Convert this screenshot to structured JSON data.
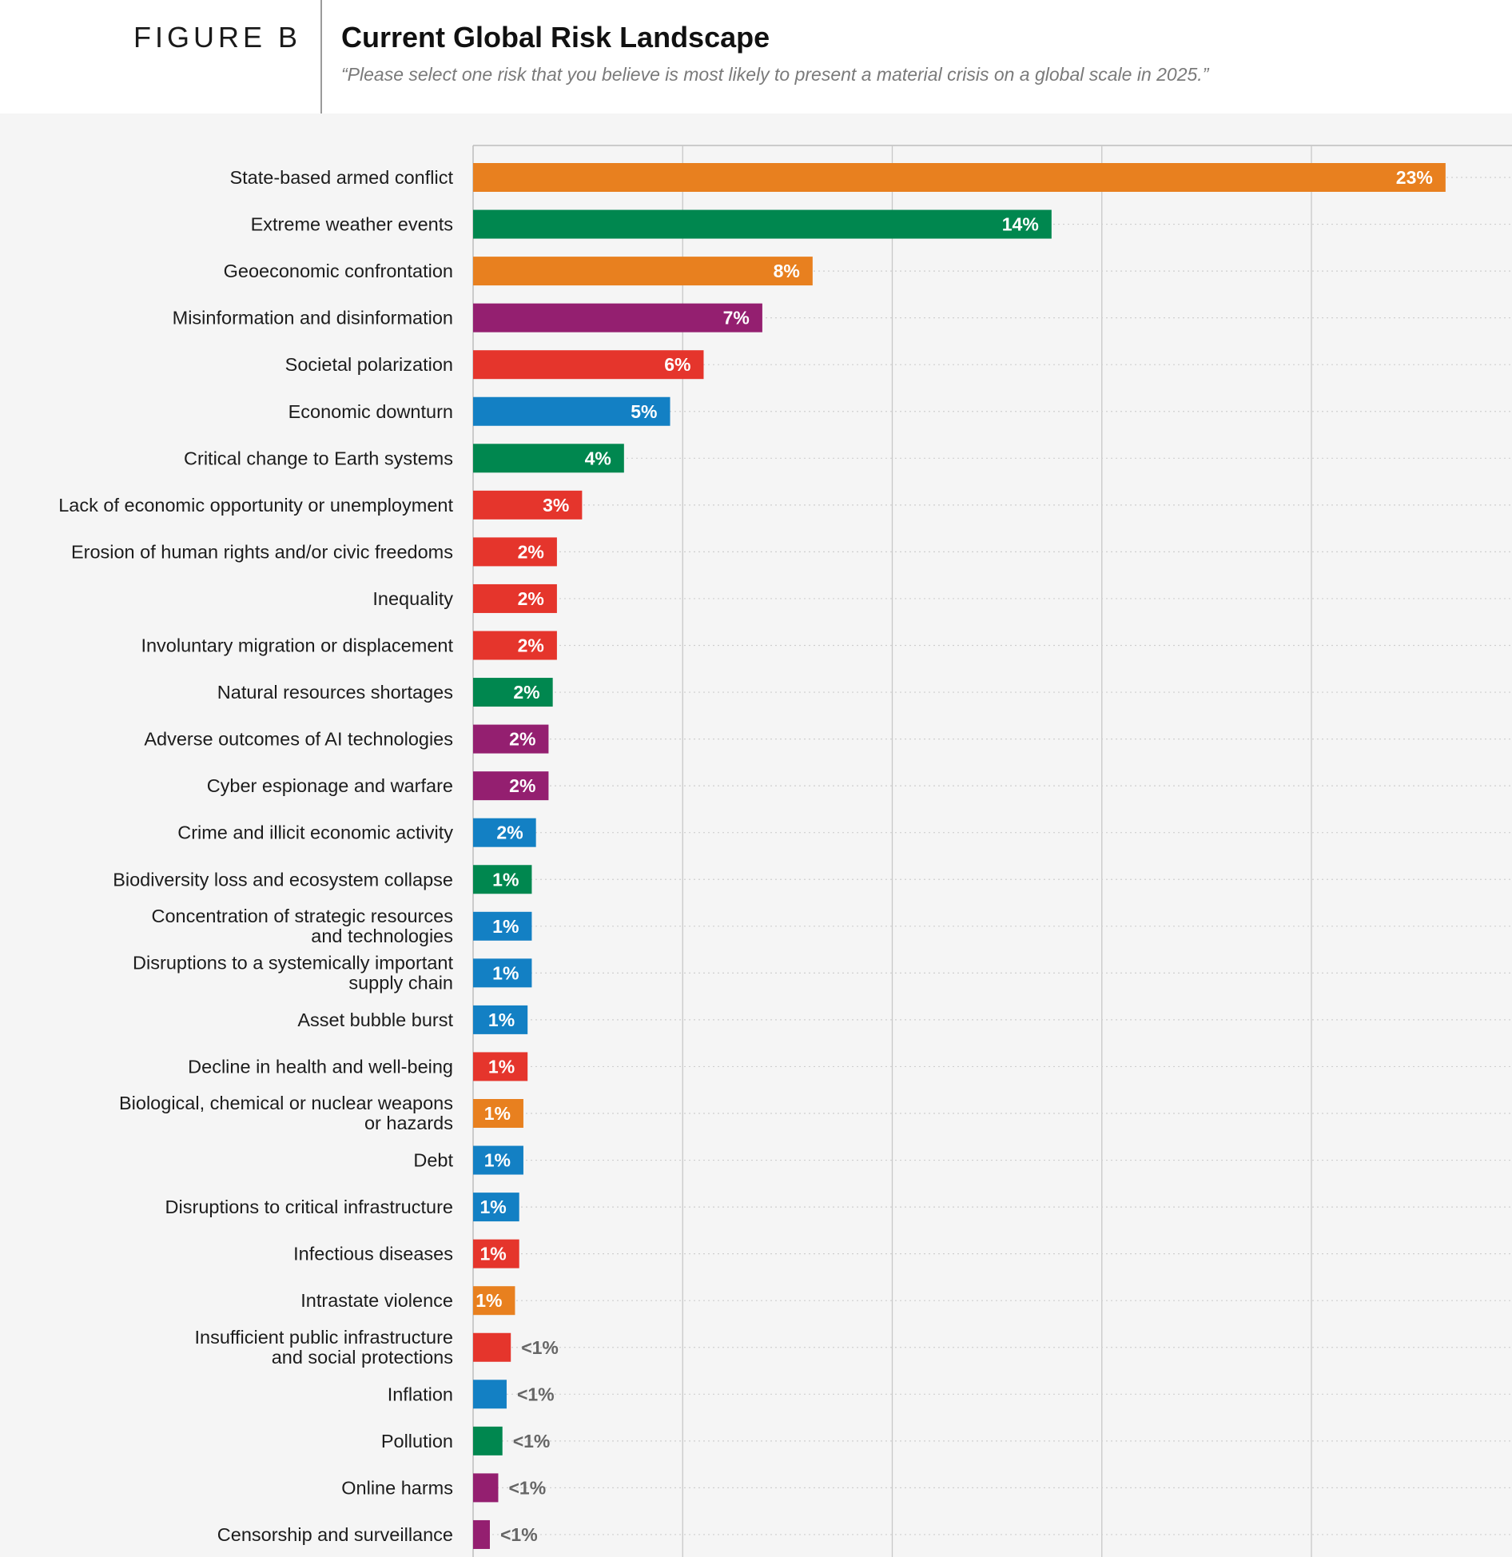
{
  "figure_label": "FIGURE B",
  "title": "Current Global Risk Landscape",
  "subtitle": "“Please select one risk that you believe is most likely to present a material crisis on a global scale in 2025.”",
  "colors": {
    "geopolitical": "#e8801f",
    "environmental": "#00874f",
    "technological": "#941f70",
    "societal": "#e5352c",
    "economic": "#1380c4"
  },
  "chart_data": {
    "type": "bar",
    "orientation": "horizontal",
    "title": "Current Global Risk Landscape",
    "xlim": [
      0,
      25
    ],
    "grid": true,
    "categories": [
      [
        "State-based armed conflict"
      ],
      [
        "Extreme weather events"
      ],
      [
        "Geoeconomic confrontation"
      ],
      [
        "Misinformation and disinformation"
      ],
      [
        "Societal polarization"
      ],
      [
        "Economic downturn"
      ],
      [
        "Critical change to Earth systems"
      ],
      [
        "Lack of economic opportunity or unemployment"
      ],
      [
        "Erosion of human rights and/or civic freedoms"
      ],
      [
        "Inequality"
      ],
      [
        "Involuntary migration or displacement"
      ],
      [
        "Natural resources shortages"
      ],
      [
        "Adverse outcomes of AI technologies"
      ],
      [
        "Cyber espionage and warfare"
      ],
      [
        "Crime and illicit economic activity"
      ],
      [
        "Biodiversity loss and ecosystem collapse"
      ],
      [
        "Concentration of strategic resources",
        "and technologies"
      ],
      [
        "Disruptions to a systemically important",
        "supply chain"
      ],
      [
        "Asset bubble burst"
      ],
      [
        "Decline in health and well-being"
      ],
      [
        "Biological, chemical or nuclear weapons",
        "or hazards"
      ],
      [
        "Debt"
      ],
      [
        "Disruptions to critical infrastructure"
      ],
      [
        "Infectious diseases"
      ],
      [
        "Intrastate violence"
      ],
      [
        "Insufficient public infrastructure",
        "and social protections"
      ],
      [
        "Inflation"
      ],
      [
        "Pollution"
      ],
      [
        "Online harms"
      ],
      [
        "Censorship and surveillance"
      ]
    ],
    "values": [
      23.2,
      13.8,
      8.1,
      6.9,
      5.5,
      4.7,
      3.6,
      2.6,
      2.0,
      2.0,
      2.0,
      1.9,
      1.8,
      1.8,
      1.5,
      1.4,
      1.4,
      1.4,
      1.3,
      1.3,
      1.2,
      1.2,
      1.1,
      1.1,
      1.0,
      0.9,
      0.8,
      0.7,
      0.6,
      0.4
    ],
    "labels": [
      "23%",
      "14%",
      "8%",
      "7%",
      "6%",
      "5%",
      "4%",
      "3%",
      "2%",
      "2%",
      "2%",
      "2%",
      "2%",
      "2%",
      "2%",
      "1%",
      "1%",
      "1%",
      "1%",
      "1%",
      "1%",
      "1%",
      "1%",
      "1%",
      "1%",
      "<1%",
      "<1%",
      "<1%",
      "<1%",
      "<1%"
    ],
    "bar_colors": [
      "#e8801f",
      "#00874f",
      "#e8801f",
      "#941f70",
      "#e5352c",
      "#1380c4",
      "#00874f",
      "#e5352c",
      "#e5352c",
      "#e5352c",
      "#e5352c",
      "#00874f",
      "#941f70",
      "#941f70",
      "#1380c4",
      "#00874f",
      "#1380c4",
      "#1380c4",
      "#1380c4",
      "#e5352c",
      "#e8801f",
      "#1380c4",
      "#1380c4",
      "#e5352c",
      "#e8801f",
      "#e5352c",
      "#1380c4",
      "#00874f",
      "#941f70",
      "#941f70"
    ]
  }
}
